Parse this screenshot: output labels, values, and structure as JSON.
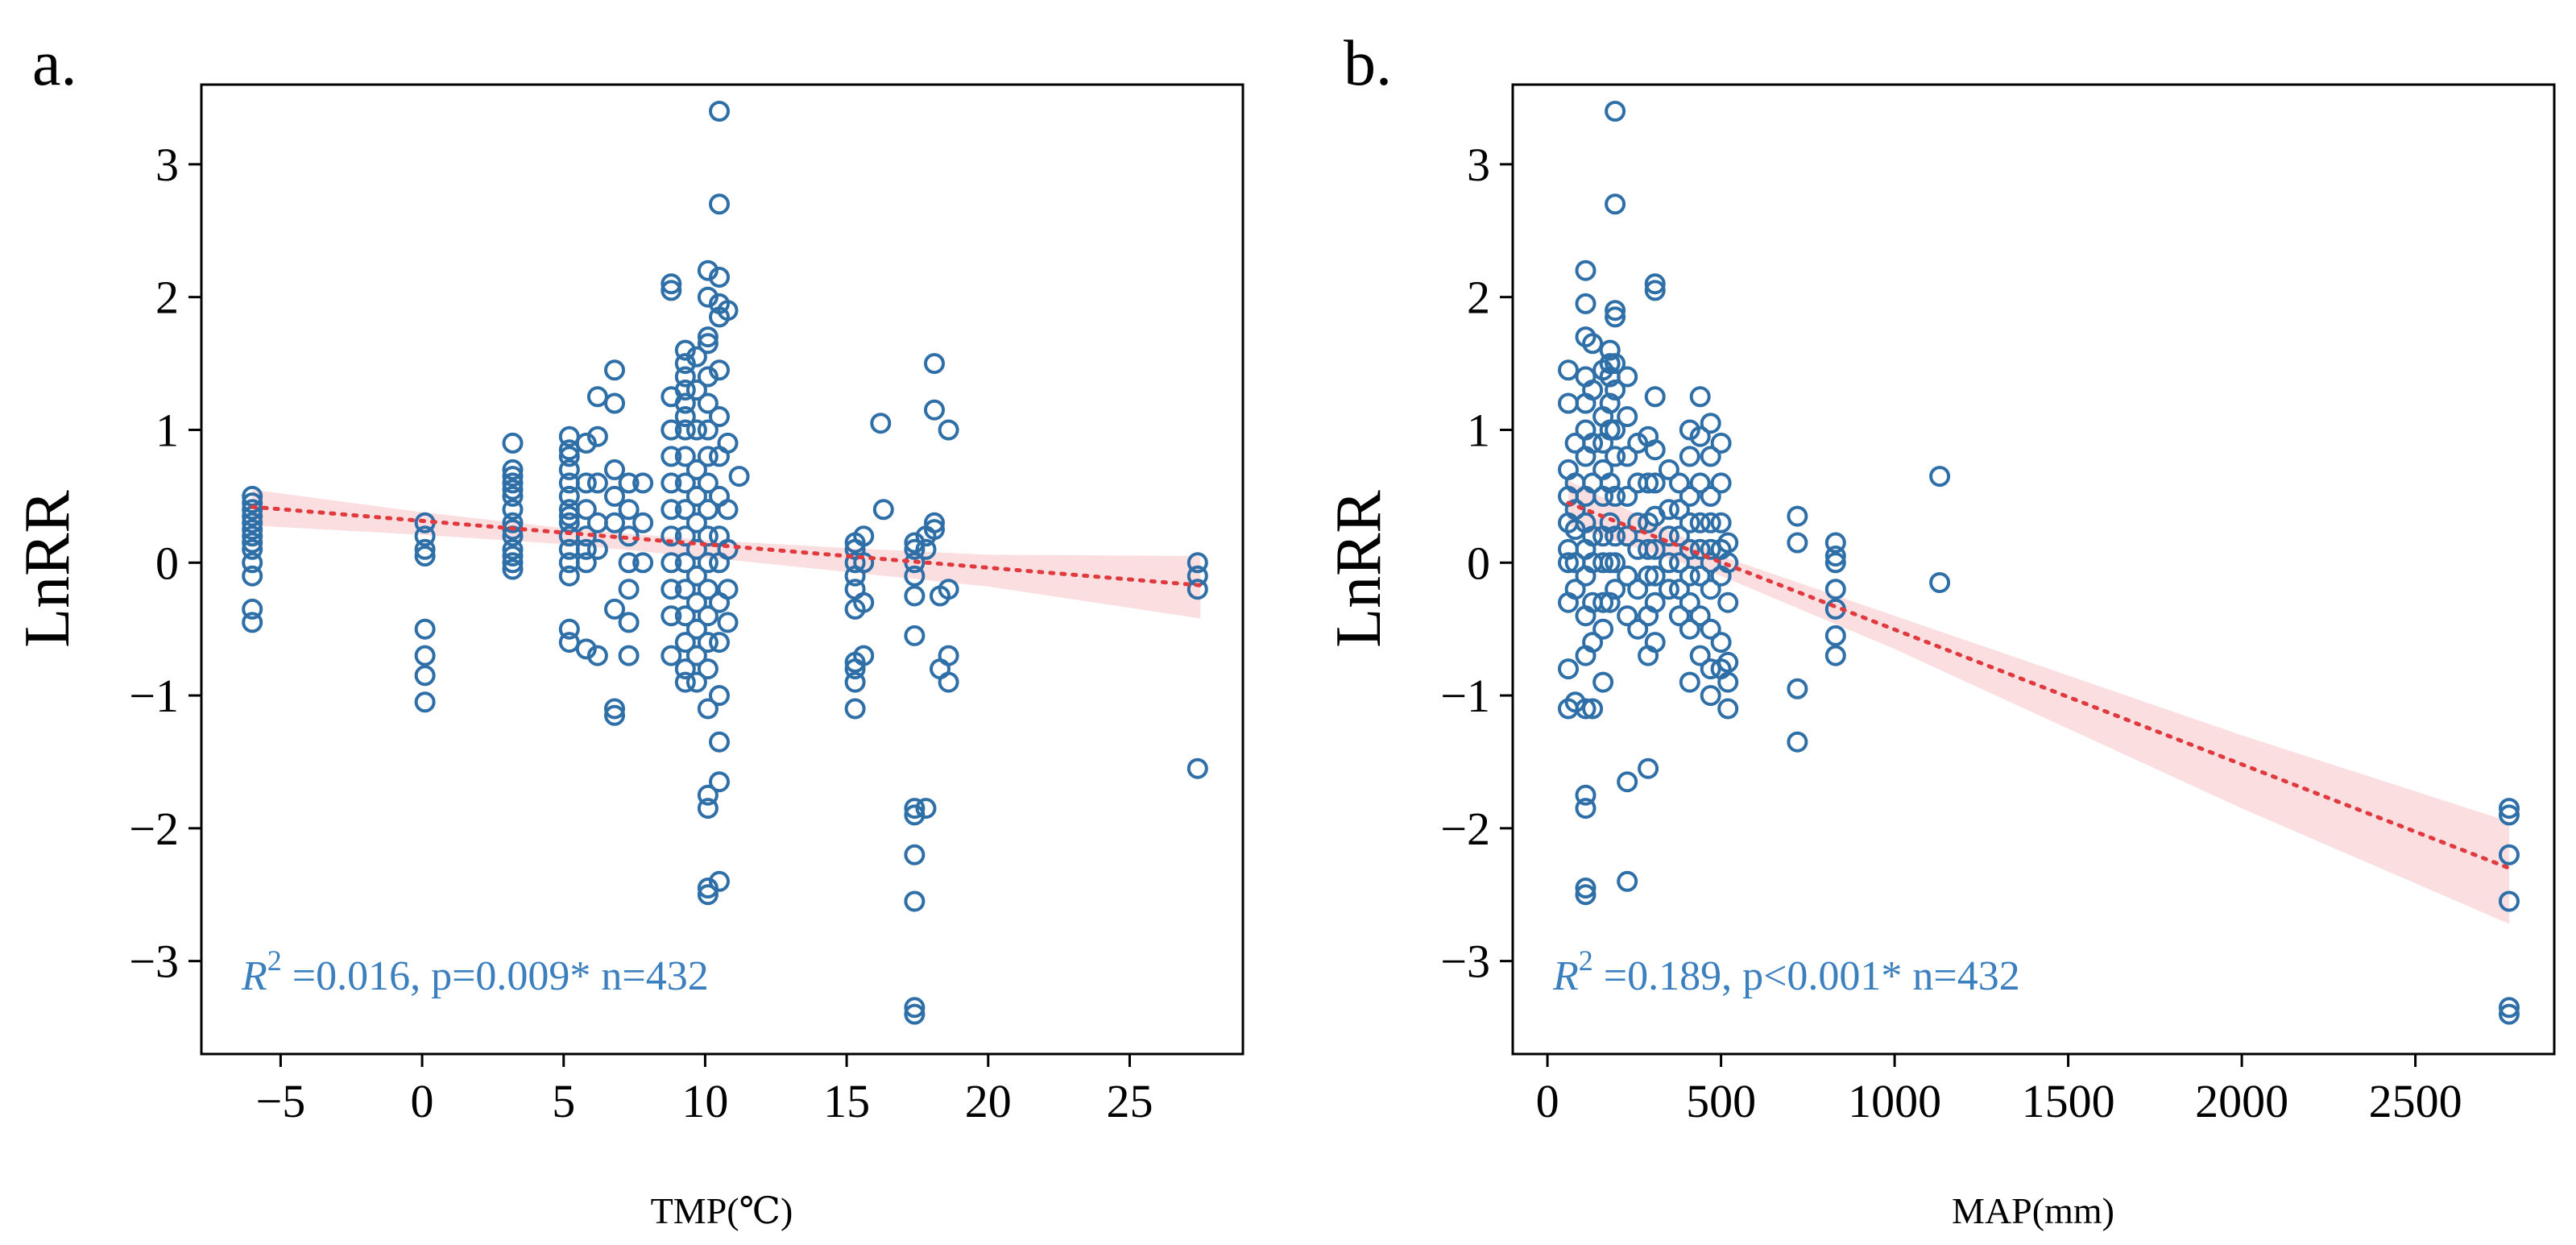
{
  "chart_data": [
    {
      "type": "scatter",
      "panel_label": "a.",
      "xlabel": "TMP(℃)",
      "ylabel": "LnRR",
      "xlim": [
        -7.8,
        29
      ],
      "ylim": [
        -3.7,
        3.6
      ],
      "xticks": [
        -5,
        0,
        5,
        10,
        15,
        20,
        25
      ],
      "xtick_labels": [
        "−5",
        "0",
        "5",
        "10",
        "15",
        "20",
        "25"
      ],
      "yticks": [
        -3,
        -2,
        -1,
        0,
        1,
        2,
        3
      ],
      "ytick_labels": [
        "−3",
        "−2",
        "−1",
        "0",
        "1",
        "2",
        "3"
      ],
      "grid": false,
      "marker": "open-circle",
      "point_color": "#2e6fa8",
      "trend_color": "#e0393e",
      "band_color": "#f4b6bb",
      "annotation": {
        "r2": "0.016",
        "p": "p=0.009*",
        "n": "n=432"
      },
      "trend": {
        "x": [
          -6.0,
          27.5
        ],
        "y": [
          0.42,
          -0.17
        ]
      },
      "band": {
        "x": [
          -6.0,
          0,
          5,
          10,
          15,
          20,
          27.5
        ],
        "upper": [
          0.55,
          0.38,
          0.26,
          0.17,
          0.11,
          0.06,
          0.05
        ],
        "lower": [
          0.28,
          0.21,
          0.14,
          0.04,
          -0.07,
          -0.18,
          -0.42
        ]
      },
      "groups": [
        {
          "x": -6.0,
          "y": [
            0.5,
            0.45,
            0.4,
            0.35,
            0.3,
            0.25,
            0.2,
            0.15,
            0.1,
            0.0,
            -0.1,
            -0.35,
            -0.45
          ]
        },
        {
          "x": 0.1,
          "y": [
            0.3,
            0.2,
            0.1,
            0.05,
            -0.5,
            -0.7,
            -0.85,
            -1.05
          ]
        },
        {
          "x": 3.2,
          "y": [
            0.9,
            0.7,
            0.65,
            0.6,
            0.55,
            0.5,
            0.4,
            0.3,
            0.25,
            0.2,
            0.1,
            0.05,
            0.0,
            -0.05
          ]
        },
        {
          "x": 5.2,
          "y": [
            0.95,
            0.85,
            0.8,
            0.7,
            0.6,
            0.5,
            0.4,
            0.35,
            0.3,
            0.2,
            0.1,
            0.0,
            -0.1,
            -0.5,
            -0.6
          ]
        },
        {
          "x": 5.8,
          "y": [
            0.9,
            0.6,
            0.4,
            0.2,
            0.1,
            0.0,
            -0.65
          ]
        },
        {
          "x": 6.2,
          "y": [
            1.25,
            0.95,
            0.6,
            0.3,
            0.1,
            -0.7
          ]
        },
        {
          "x": 6.8,
          "y": [
            1.45,
            1.2,
            0.7,
            0.5,
            0.3,
            -0.35,
            -1.1,
            -1.15
          ]
        },
        {
          "x": 7.3,
          "y": [
            0.6,
            0.4,
            0.2,
            0.0,
            -0.2,
            -0.45,
            -0.7
          ]
        },
        {
          "x": 7.8,
          "y": [
            0.6,
            0.3,
            0.0
          ]
        },
        {
          "x": 8.8,
          "y": [
            2.1,
            2.05,
            1.25,
            1.0,
            0.8,
            0.6,
            0.4,
            0.2,
            0.0,
            -0.2,
            -0.4,
            -0.7
          ]
        },
        {
          "x": 9.3,
          "y": [
            1.6,
            1.5,
            1.4,
            1.3,
            1.2,
            1.1,
            1.0,
            0.8,
            0.6,
            0.4,
            0.2,
            0.0,
            -0.2,
            -0.4,
            -0.6,
            -0.8,
            -0.9
          ]
        },
        {
          "x": 9.7,
          "y": [
            1.55,
            1.3,
            1.0,
            0.7,
            0.5,
            0.3,
            0.1,
            -0.1,
            -0.3,
            -0.5,
            -0.7,
            -0.9
          ]
        },
        {
          "x": 10.1,
          "y": [
            2.2,
            2.0,
            1.7,
            1.65,
            1.4,
            1.2,
            1.0,
            0.8,
            0.6,
            0.4,
            0.2,
            0.0,
            -0.2,
            -0.4,
            -0.6,
            -0.8,
            -1.1,
            -1.75,
            -1.85,
            -2.45,
            -2.5
          ]
        },
        {
          "x": 10.5,
          "y": [
            3.4,
            2.7,
            2.15,
            1.95,
            1.85,
            1.45,
            1.1,
            0.8,
            0.5,
            0.2,
            0.0,
            -0.3,
            -0.6,
            -1.0,
            -1.35,
            -1.65,
            -2.4
          ]
        },
        {
          "x": 10.8,
          "y": [
            1.9,
            0.9,
            0.4,
            0.1,
            -0.2,
            -0.45
          ]
        },
        {
          "x": 11.2,
          "y": [
            0.65
          ]
        },
        {
          "x": 15.3,
          "y": [
            0.15,
            0.1,
            0.0,
            -0.1,
            -0.2,
            -0.35,
            -0.75,
            -0.8,
            -0.9,
            -1.1
          ]
        },
        {
          "x": 15.6,
          "y": [
            0.2,
            0.0,
            -0.3,
            -0.7
          ]
        },
        {
          "x": 16.2,
          "y": [
            1.05
          ]
        },
        {
          "x": 16.3,
          "y": [
            0.4
          ]
        },
        {
          "x": 17.4,
          "y": [
            0.15,
            0.1,
            0.0,
            -0.1,
            -0.25,
            -0.55,
            -1.85,
            -1.9,
            -2.2,
            -2.55,
            -3.35,
            -3.4
          ]
        },
        {
          "x": 17.8,
          "y": [
            0.2,
            0.1,
            -1.85
          ]
        },
        {
          "x": 18.1,
          "y": [
            1.5,
            1.15,
            0.3,
            0.25
          ]
        },
        {
          "x": 18.3,
          "y": [
            -0.8,
            -0.25
          ]
        },
        {
          "x": 18.6,
          "y": [
            1.0,
            -0.2,
            -0.7,
            -0.9
          ]
        },
        {
          "x": 27.4,
          "y": [
            0.0,
            -0.1,
            -0.2,
            -1.55
          ]
        }
      ]
    },
    {
      "type": "scatter",
      "panel_label": "b.",
      "xlabel": "MAP(mm)",
      "ylabel": "LnRR",
      "xlim": [
        -100,
        2900
      ],
      "ylim": [
        -3.7,
        3.6
      ],
      "xticks": [
        0,
        500,
        1000,
        1500,
        2000,
        2500
      ],
      "xtick_labels": [
        "0",
        "500",
        "1000",
        "1500",
        "2000",
        "2500"
      ],
      "yticks": [
        -3,
        -2,
        -1,
        0,
        1,
        2,
        3
      ],
      "ytick_labels": [
        "−3",
        "−2",
        "−1",
        "0",
        "1",
        "2",
        "3"
      ],
      "grid": false,
      "marker": "open-circle",
      "point_color": "#2e6fa8",
      "trend_color": "#e0393e",
      "band_color": "#f4b6bb",
      "annotation": {
        "r2": "0.189",
        "p": "p<0.001*",
        "n": "n=432"
      },
      "trend": {
        "x": [
          60,
          2770
        ],
        "y": [
          0.45,
          -2.3
        ]
      },
      "band": {
        "x": [
          60,
          500,
          1000,
          1500,
          2000,
          2770
        ],
        "upper": [
          0.62,
          0.05,
          -0.4,
          -0.85,
          -1.3,
          -1.95
        ],
        "lower": [
          0.28,
          -0.1,
          -0.65,
          -1.25,
          -1.85,
          -2.72
        ]
      },
      "groups": [
        {
          "x": 60,
          "y": [
            1.45,
            1.2,
            0.7,
            0.5,
            0.3,
            0.1,
            0.0,
            -0.3,
            -0.8,
            -1.1
          ]
        },
        {
          "x": 80,
          "y": [
            0.9,
            0.6,
            0.4,
            0.25,
            0.0,
            -0.2,
            -1.05
          ]
        },
        {
          "x": 110,
          "y": [
            2.2,
            1.95,
            1.7,
            1.4,
            1.2,
            1.0,
            0.8,
            0.5,
            0.3,
            0.1,
            -0.1,
            -0.4,
            -0.7,
            -1.1,
            -1.75,
            -1.85,
            -2.45,
            -2.5
          ]
        },
        {
          "x": 130,
          "y": [
            1.65,
            1.3,
            0.9,
            0.6,
            0.2,
            0.0,
            -0.3,
            -0.6,
            -1.1
          ]
        },
        {
          "x": 160,
          "y": [
            1.45,
            1.1,
            0.9,
            0.7,
            0.5,
            0.2,
            0.0,
            -0.3,
            -0.5,
            -0.9
          ]
        },
        {
          "x": 180,
          "y": [
            1.6,
            1.5,
            1.4,
            1.2,
            1.0,
            0.6,
            0.3,
            0.0,
            -0.3
          ]
        },
        {
          "x": 195,
          "y": [
            3.4,
            2.7,
            1.9,
            1.85,
            1.5,
            1.3,
            1.0,
            0.8,
            0.5,
            0.2,
            0.0,
            -0.2
          ]
        },
        {
          "x": 230,
          "y": [
            1.4,
            1.1,
            0.8,
            0.5,
            0.2,
            -0.1,
            -0.4,
            -1.65,
            -2.4
          ]
        },
        {
          "x": 260,
          "y": [
            0.9,
            0.6,
            0.3,
            0.1,
            -0.2,
            -0.5
          ]
        },
        {
          "x": 290,
          "y": [
            0.95,
            0.6,
            0.3,
            0.1,
            -0.1,
            -0.4,
            -0.7,
            -1.55
          ]
        },
        {
          "x": 310,
          "y": [
            2.1,
            2.05,
            1.25,
            0.85,
            0.6,
            0.35,
            0.1,
            -0.1,
            -0.3,
            -0.6
          ]
        },
        {
          "x": 350,
          "y": [
            0.7,
            0.4,
            0.2,
            0.0,
            -0.2
          ]
        },
        {
          "x": 380,
          "y": [
            0.6,
            0.4,
            0.2,
            0.0,
            -0.2,
            -0.4
          ]
        },
        {
          "x": 410,
          "y": [
            1.0,
            0.8,
            0.5,
            0.3,
            0.1,
            -0.1,
            -0.3,
            -0.5,
            -0.9
          ]
        },
        {
          "x": 440,
          "y": [
            1.25,
            0.95,
            0.6,
            0.3,
            0.1,
            -0.1,
            -0.4,
            -0.7
          ]
        },
        {
          "x": 470,
          "y": [
            1.05,
            0.8,
            0.5,
            0.3,
            0.1,
            0.0,
            -0.2,
            -0.5,
            -0.8,
            -1.0
          ]
        },
        {
          "x": 500,
          "y": [
            0.9,
            0.6,
            0.3,
            0.1,
            -0.1,
            -0.6,
            -0.8
          ]
        },
        {
          "x": 520,
          "y": [
            0.15,
            0.0,
            -0.3,
            -0.75,
            -0.9,
            -1.1
          ]
        },
        {
          "x": 720,
          "y": [
            0.35,
            0.15,
            -0.95,
            -1.35
          ]
        },
        {
          "x": 830,
          "y": [
            0.15,
            0.05,
            0.0,
            -0.2,
            -0.35,
            -0.55,
            -0.7
          ]
        },
        {
          "x": 1130,
          "y": [
            0.65,
            -0.15
          ]
        },
        {
          "x": 2770,
          "y": [
            -1.85,
            -1.9,
            -2.2,
            -2.55,
            -3.35,
            -3.4
          ]
        }
      ]
    }
  ]
}
